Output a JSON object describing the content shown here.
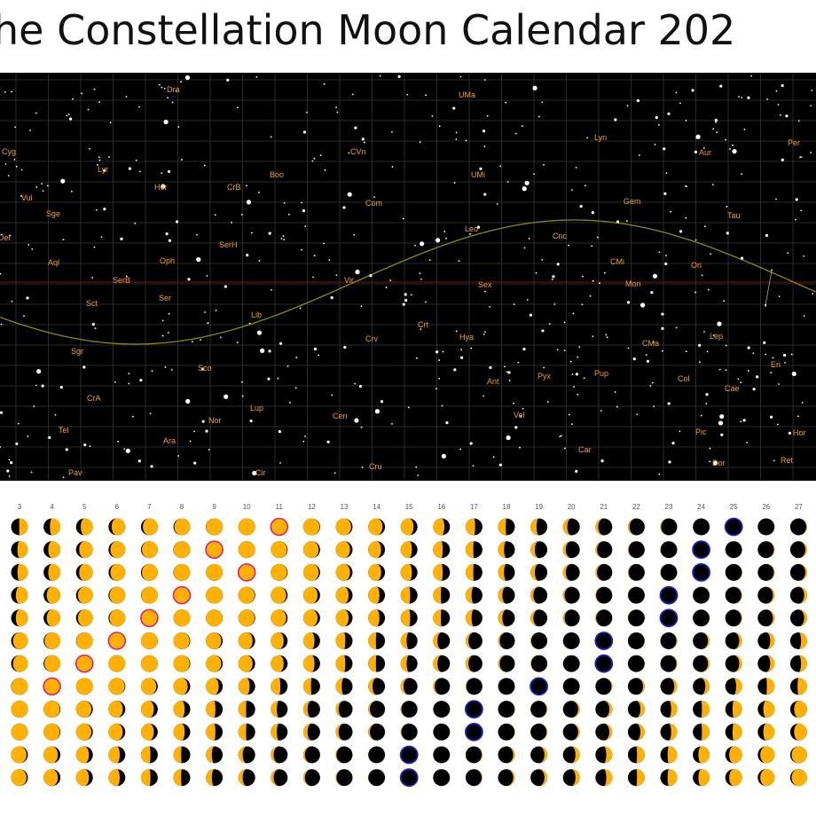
{
  "title": "he Constellation Moon Calendar 202",
  "constellations": [
    "Dra",
    "UMa",
    "Cyg",
    "Lyr",
    "CVn",
    "Lyn",
    "Aur",
    "Per",
    "Vul",
    "Her",
    "CrB",
    "Boo",
    "UMi",
    "Sge",
    "Com",
    "Gem",
    "Tau",
    "Del",
    "SerH",
    "Leo",
    "Cnc",
    "Aql",
    "Oph",
    "CMi",
    "Ori",
    "SerB",
    "Vir",
    "Sex",
    "Mon",
    "Sct",
    "Ser",
    "Lib",
    "Crt",
    "Hya",
    "Lep",
    "Crv",
    "CMa",
    "Sgr",
    "Eri",
    "Sco",
    "Pyx",
    "Pup",
    "Ant",
    "Col",
    "Cae",
    "CrA",
    "Lup",
    "Cen",
    "Vel",
    "Tel",
    "Nor",
    "Pic",
    "Hor",
    "Ara",
    "Car",
    "Dor",
    "Ret",
    "Pav",
    "Cir",
    "Cru"
  ],
  "days": [
    3,
    4,
    5,
    6,
    7,
    8,
    9,
    10,
    11,
    12,
    13,
    14,
    15,
    16,
    17,
    18,
    19,
    20,
    21,
    22,
    23,
    24,
    25,
    26,
    27
  ]
}
